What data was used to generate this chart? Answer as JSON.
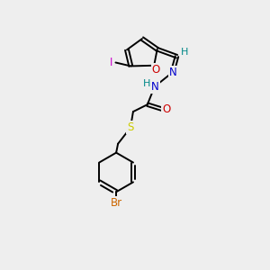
{
  "background_color": "#eeeeee",
  "bond_color": "#000000",
  "atom_colors": {
    "I": "#cc00cc",
    "O": "#cc0000",
    "N": "#0000cc",
    "S": "#cccc00",
    "Br": "#cc6600",
    "H": "#008888",
    "C": "#000000"
  },
  "figsize": [
    3.0,
    3.0
  ],
  "dpi": 100,
  "lw": 1.4
}
